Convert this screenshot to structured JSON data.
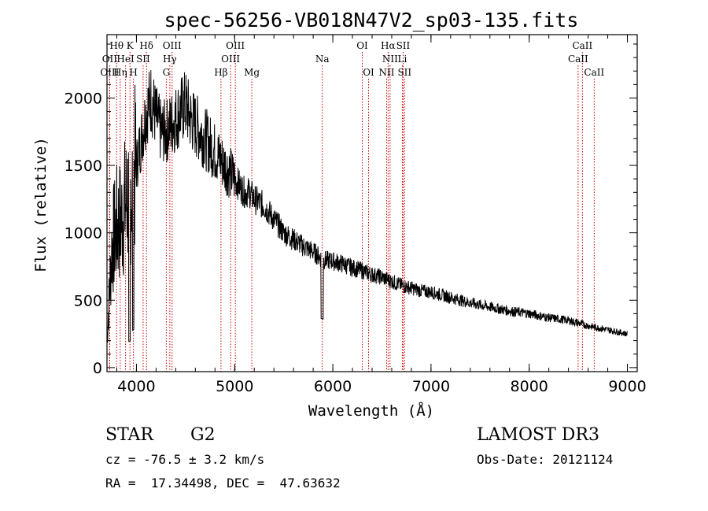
{
  "chart_data": {
    "type": "line",
    "title": "spec-56256-VB018N47V2_sp03-135.fits",
    "xlabel": "Wavelength (Å)",
    "ylabel": "Flux (relative)",
    "xlim": [
      3700,
      9100
    ],
    "ylim": [
      -30,
      2470
    ],
    "xticks": [
      4000,
      5000,
      6000,
      7000,
      8000,
      9000
    ],
    "yticks": [
      0,
      500,
      1000,
      1500,
      2000
    ],
    "series": [
      {
        "name": "spectrum",
        "x": [
          3700,
          3750,
          3800,
          3850,
          3900,
          3950,
          4000,
          4050,
          4100,
          4150,
          4200,
          4250,
          4300,
          4350,
          4400,
          4450,
          4500,
          4550,
          4600,
          4650,
          4700,
          4750,
          4800,
          4850,
          4900,
          4950,
          5000,
          5050,
          5100,
          5150,
          5200,
          5300,
          5400,
          5500,
          5600,
          5700,
          5800,
          5900,
          6000,
          6100,
          6200,
          6300,
          6400,
          6500,
          6600,
          6700,
          6800,
          6900,
          7000,
          7200,
          7400,
          7600,
          7800,
          8000,
          8200,
          8400,
          8600,
          8800,
          9000
        ],
        "y": [
          200,
          900,
          1050,
          1100,
          1250,
          1350,
          1500,
          1700,
          1900,
          2000,
          1850,
          1750,
          1750,
          1800,
          1850,
          1900,
          1950,
          1850,
          1800,
          1750,
          1700,
          1650,
          1600,
          1550,
          1500,
          1450,
          1400,
          1350,
          1300,
          1300,
          1250,
          1200,
          1100,
          1000,
          950,
          900,
          860,
          800,
          790,
          770,
          740,
          720,
          690,
          670,
          640,
          610,
          590,
          570,
          560,
          520,
          480,
          450,
          420,
          400,
          370,
          350,
          310,
          280,
          250
        ]
      }
    ],
    "line_markers": [
      {
        "label": "Hθ",
        "x": 3798,
        "row": 0
      },
      {
        "label": "OII",
        "x": 3727,
        "row": 1
      },
      {
        "label": "OIII",
        "x": 3727,
        "row": 2
      },
      {
        "label": "K",
        "x": 3934,
        "row": 0
      },
      {
        "label": "HeI",
        "x": 3889,
        "row": 1
      },
      {
        "label": "Hη",
        "x": 3835,
        "row": 2
      },
      {
        "label": "SII",
        "x": 4068,
        "row": 1
      },
      {
        "label": "H",
        "x": 3969,
        "row": 2
      },
      {
        "label": "Hδ",
        "x": 4102,
        "row": 0
      },
      {
        "label": "OIII",
        "x": 4363,
        "row": 0
      },
      {
        "label": "Hγ",
        "x": 4340,
        "row": 1
      },
      {
        "label": "G",
        "x": 4304,
        "row": 2
      },
      {
        "label": "OIII",
        "x": 5007,
        "row": 0
      },
      {
        "label": "OIII",
        "x": 4959,
        "row": 1
      },
      {
        "label": "Hβ",
        "x": 4861,
        "row": 2
      },
      {
        "label": "Mg",
        "x": 5175,
        "row": 2
      },
      {
        "label": "Na",
        "x": 5893,
        "row": 1
      },
      {
        "label": "OI",
        "x": 6300,
        "row": 0
      },
      {
        "label": "OI",
        "x": 6364,
        "row": 2
      },
      {
        "label": "Hα",
        "x": 6563,
        "row": 0
      },
      {
        "label": "SII",
        "x": 6716,
        "row": 0
      },
      {
        "label": "NII",
        "x": 6583,
        "row": 1
      },
      {
        "label": "Li",
        "x": 6708,
        "row": 1
      },
      {
        "label": "NII",
        "x": 6548,
        "row": 2
      },
      {
        "label": "SII",
        "x": 6731,
        "row": 2
      },
      {
        "label": "CaII",
        "x": 8542,
        "row": 0
      },
      {
        "label": "CaII",
        "x": 8498,
        "row": 1
      },
      {
        "label": "CaII",
        "x": 8662,
        "row": 2
      }
    ]
  },
  "info": {
    "object_class": "STAR",
    "subclass": "G2",
    "survey": "LAMOST DR3",
    "velocity": "cz = -76.5 ± 3.2 km/s",
    "obs_date": "Obs-Date: 20121124",
    "coords": "RA =  17.34498, DEC =  47.63632"
  },
  "colors": {
    "axis": "#000000",
    "marker_line": "#cc0000",
    "spectrum": "#000000"
  }
}
